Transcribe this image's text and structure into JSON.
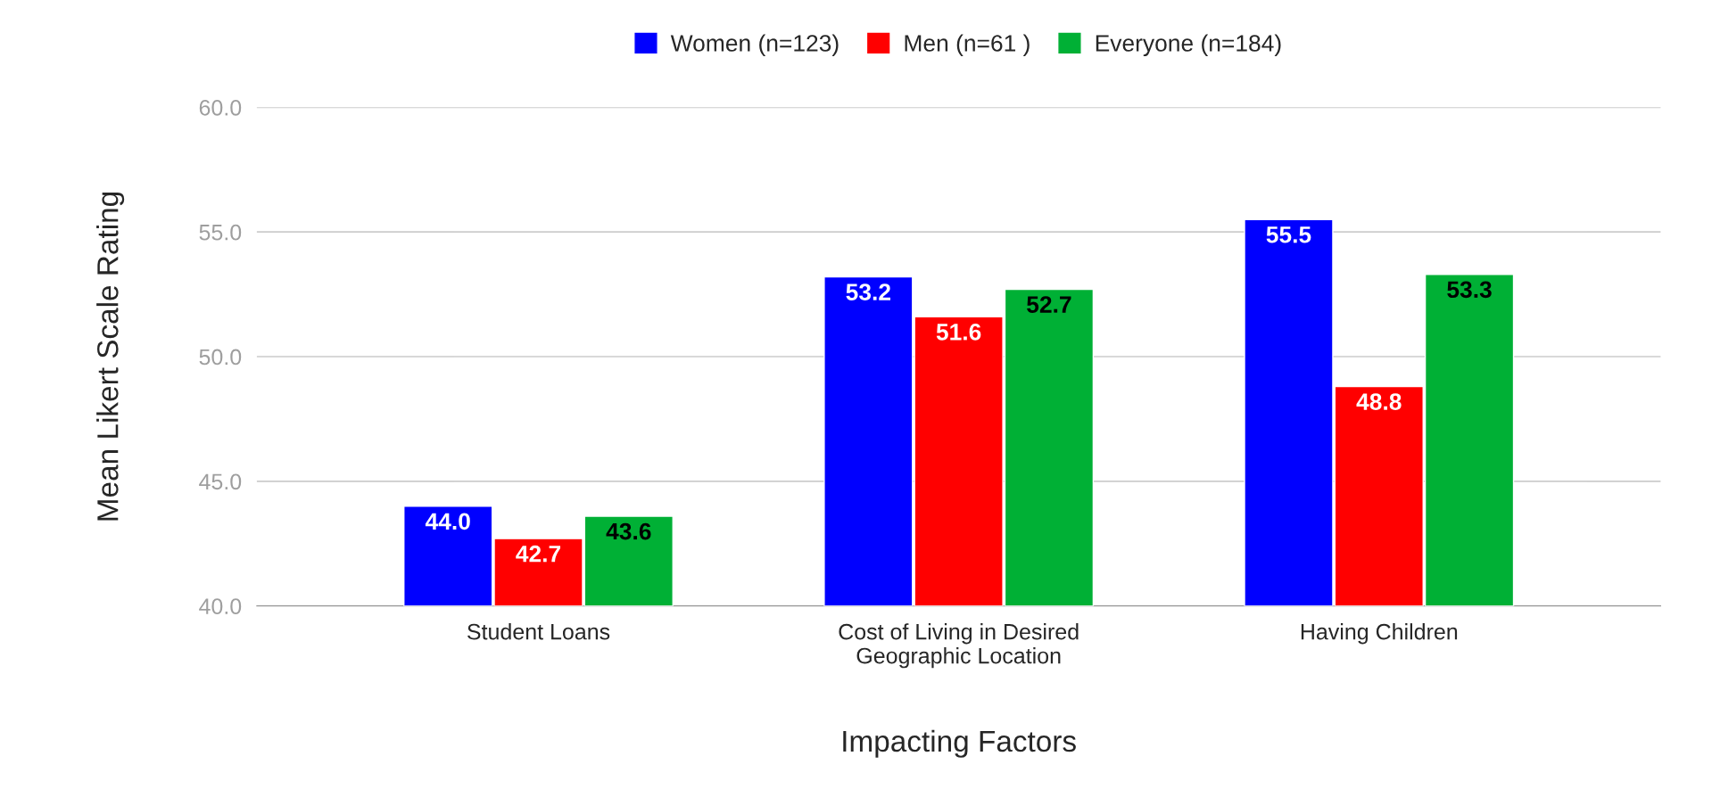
{
  "chart_data": {
    "type": "bar",
    "xlabel": "Impacting Factors",
    "ylabel": "Mean Likert Scale Rating",
    "categories": [
      "Student Loans",
      "Cost of Living in Desired\nGeographic Location",
      "Having Children"
    ],
    "series": [
      {
        "name": "Women (n=123)",
        "color": "#0000ff",
        "values": [
          44.0,
          53.2,
          55.5
        ],
        "value_labels": [
          "44.0",
          "53.2",
          "55.5"
        ]
      },
      {
        "name": "Men (n=61 )",
        "color": "#ff0000",
        "values": [
          42.7,
          51.6,
          48.8
        ],
        "value_labels": [
          "42.7",
          "51.6",
          "48.8"
        ]
      },
      {
        "name": "Everyone (n=184)",
        "color": "#00b035",
        "values": [
          43.6,
          52.7,
          53.3
        ],
        "value_labels": [
          "43.6",
          "52.7",
          "53.3"
        ]
      }
    ],
    "ylim": [
      40,
      60
    ],
    "yticks": [
      {
        "value": 40,
        "label": "40.0"
      },
      {
        "value": 45,
        "label": "45.0"
      },
      {
        "value": 50,
        "label": "50.0"
      },
      {
        "value": 55,
        "label": "55.0"
      },
      {
        "value": 60,
        "label": "60.0"
      }
    ],
    "grid": "y",
    "legend": "top"
  }
}
